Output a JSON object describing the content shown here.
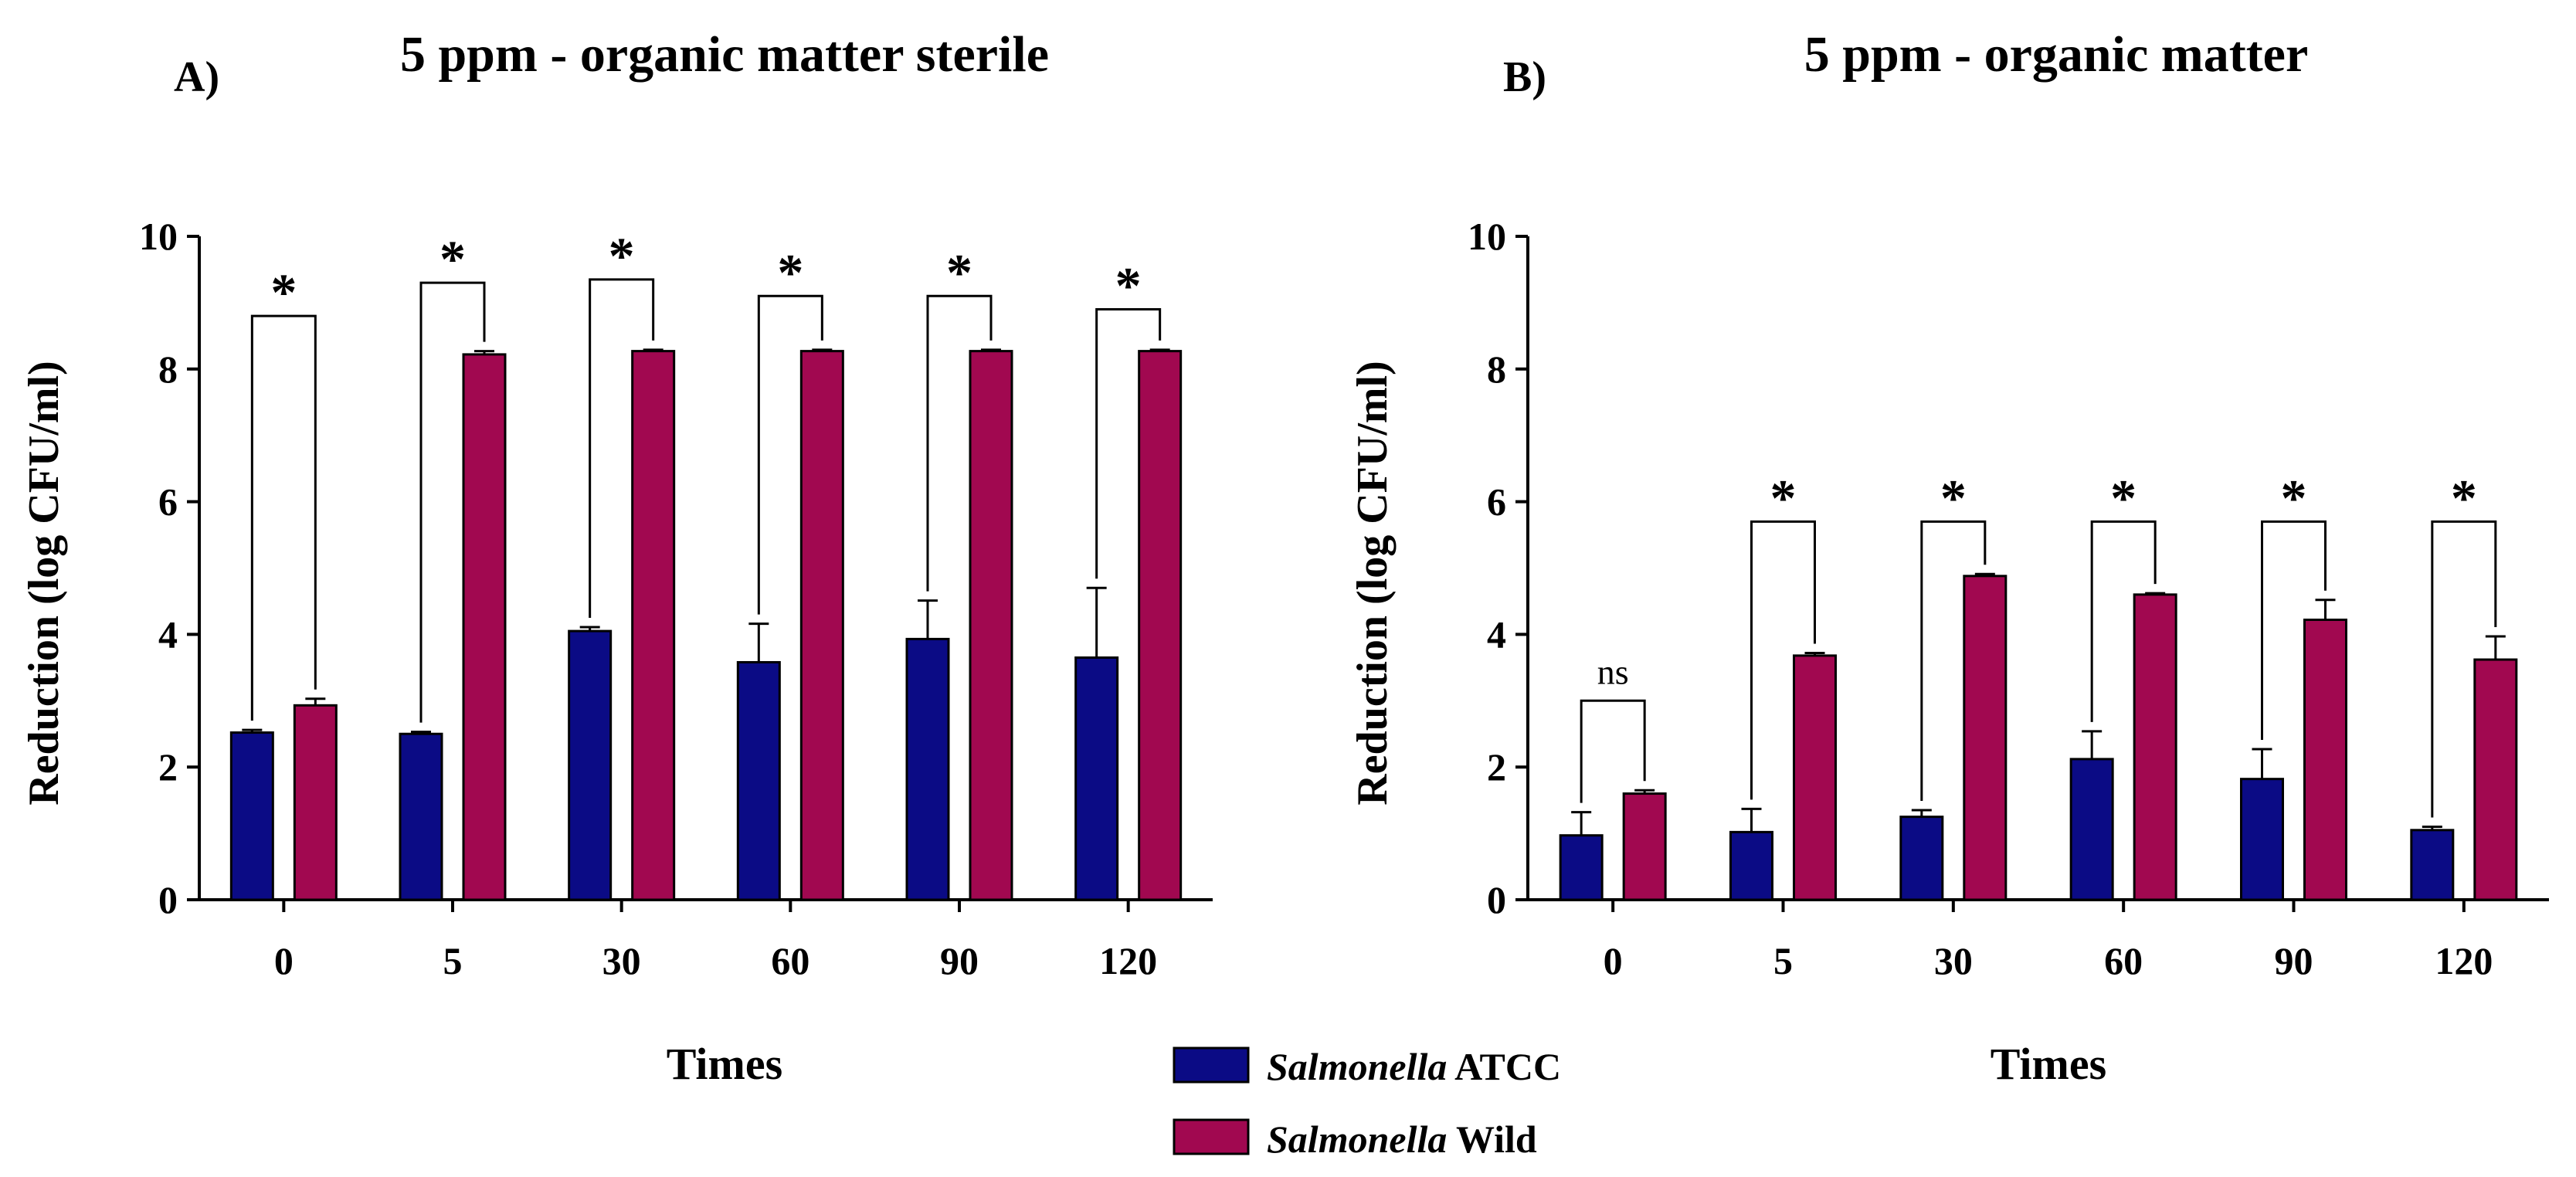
{
  "colors": {
    "atcc": "#0b0b85",
    "wild": "#a10850",
    "axis": "#000000"
  },
  "legend": {
    "items": [
      {
        "series": "atcc",
        "italic": "Salmonella",
        "rest": " ATCC"
      },
      {
        "series": "wild",
        "italic": "Salmonella",
        "rest": " Wild"
      }
    ]
  },
  "chart_data": [
    {
      "type": "bar",
      "panel": "A)",
      "title": "5 ppm - organic matter sterile",
      "xlabel": "Times",
      "ylabel": "Reduction (log CFU/ml)",
      "ylim": [
        0,
        10
      ],
      "yticks": [
        "0",
        "2",
        "4",
        "6",
        "8",
        "10"
      ],
      "categories": [
        "0",
        "5",
        "30",
        "60",
        "90",
        "120"
      ],
      "series": [
        {
          "name": "Salmonella ATCC",
          "key": "atcc",
          "values": [
            2.52,
            2.5,
            4.05,
            3.58,
            3.93,
            3.65
          ],
          "errors": [
            0.04,
            0.03,
            0.06,
            0.58,
            0.58,
            1.05
          ]
        },
        {
          "name": "Salmonella Wild",
          "key": "wild",
          "values": [
            2.93,
            8.22,
            8.27,
            8.27,
            8.27,
            8.27
          ],
          "errors": [
            0.1,
            0.05,
            0.02,
            0.02,
            0.02,
            0.02
          ]
        }
      ],
      "significance": [
        "*",
        "*",
        "*",
        "*",
        "*",
        "*"
      ],
      "bracket_levels": [
        8.8,
        9.3,
        9.35,
        9.1,
        9.1,
        8.9
      ]
    },
    {
      "type": "bar",
      "panel": "B)",
      "title": "5 ppm - organic matter",
      "xlabel": "Times",
      "ylabel": "Reduction (log CFU/ml)",
      "ylim": [
        0,
        10
      ],
      "yticks": [
        "0",
        "2",
        "4",
        "6",
        "8",
        "10"
      ],
      "categories": [
        "0",
        "5",
        "30",
        "60",
        "90",
        "120"
      ],
      "series": [
        {
          "name": "Salmonella ATCC",
          "key": "atcc",
          "values": [
            0.97,
            1.02,
            1.25,
            2.12,
            1.82,
            1.05
          ],
          "errors": [
            0.35,
            0.35,
            0.1,
            0.42,
            0.45,
            0.05
          ]
        },
        {
          "name": "Salmonella Wild",
          "key": "wild",
          "values": [
            1.6,
            3.68,
            4.88,
            4.6,
            4.22,
            3.62
          ],
          "errors": [
            0.05,
            0.04,
            0.03,
            0.02,
            0.3,
            0.35
          ]
        }
      ],
      "significance": [
        "ns",
        "*",
        "*",
        "*",
        "*",
        "*"
      ],
      "bracket_levels": [
        3.0,
        5.7,
        5.7,
        5.7,
        5.7,
        5.7
      ]
    }
  ]
}
